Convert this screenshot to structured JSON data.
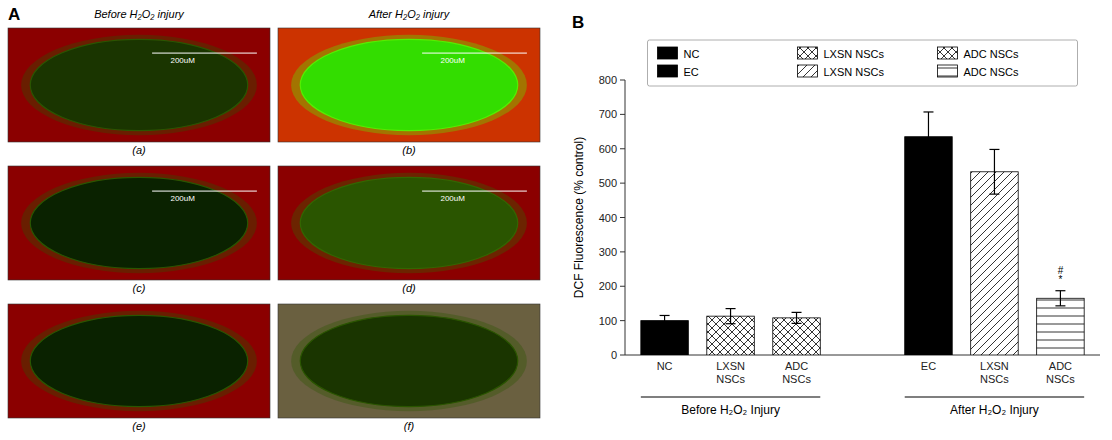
{
  "chart_data": [
    {
      "type": "image_grid",
      "title": "A",
      "columns": [
        "Before H₂O₂ injury",
        "After H₂O₂ injury"
      ],
      "categories": [
        "(a)",
        "(b)",
        "(c)",
        "(d)",
        "(e)",
        "(f)"
      ],
      "colors": [
        "#8B0000",
        "#cc3300",
        "#8B0000",
        "#8B0000",
        "#8B0000",
        "#6a6040"
      ],
      "ellipse_colors": [
        "#1a3500",
        "#33dd00",
        "#0a2200",
        "#2a5500",
        "#0a2200",
        "#1a3500"
      ],
      "ellipse_edge_colors": [
        "#2a5500",
        "#55ee00",
        "#2a5500",
        "#336600",
        "#2a5500",
        "#2a5500"
      ],
      "annotations": [
        "200uM",
        "200uM",
        "200uM",
        "200uM",
        null,
        null
      ]
    },
    {
      "type": "bar",
      "title": "B",
      "categories": [
        "NC",
        "LXSN\nNSCs",
        "ADC\nNSCs",
        "EC",
        "LXSN\nNSCs",
        "ADC\nNSCs"
      ],
      "ylabel": "DCF Fluorescence (% control)",
      "ylim": [
        0,
        800
      ],
      "yticks": [
        0,
        100,
        200,
        300,
        400,
        500,
        600,
        700,
        800
      ],
      "groups": [
        {
          "label": "Before H₂O₂ Injury",
          "count": 3
        },
        {
          "label": "After H₂O₂ Injury",
          "count": 3
        }
      ],
      "legend": "top",
      "series": [
        {
          "name": "NC",
          "color": "black",
          "edge_color": "black",
          "hatch": "....",
          "values": [
            100,
            null,
            null,
            null,
            null,
            null
          ],
          "errors": [
            15,
            null,
            null,
            null,
            null,
            null
          ]
        },
        {
          "name": "LXSN NSCs",
          "color": "white",
          "edge_color": "black",
          "hatch": "xxxx",
          "values": [
            null,
            113,
            null,
            null,
            null,
            null
          ],
          "errors": [
            null,
            22,
            null,
            null,
            null,
            null
          ]
        },
        {
          "name": "ADC NSCs",
          "color": "white",
          "edge_color": "black",
          "hatch": "xxxx",
          "values": [
            null,
            null,
            108,
            null,
            null,
            null
          ],
          "errors": [
            null,
            null,
            16,
            null,
            null,
            null
          ]
        },
        {
          "name": "EC",
          "color": "black",
          "edge_color": "black",
          "hatch": "....",
          "values": [
            null,
            null,
            null,
            635,
            null,
            null
          ],
          "errors": [
            null,
            null,
            null,
            72,
            null,
            null
          ]
        },
        {
          "name": "LXSN NSCs",
          "color": "white",
          "edge_color": "black",
          "hatch": "////",
          "values": [
            null,
            null,
            null,
            null,
            533,
            null
          ],
          "errors": [
            null,
            null,
            null,
            null,
            65,
            null
          ]
        },
        {
          "name": "ADC NSCs",
          "color": "white",
          "edge_color": "black",
          "hatch": "----",
          "values": [
            null,
            null,
            null,
            null,
            null,
            165
          ],
          "errors": [
            null,
            null,
            null,
            null,
            null,
            22
          ]
        }
      ],
      "annotations": [
        {
          "text": "#",
          "category": 5,
          "y": 235
        },
        {
          "text": "*",
          "category": 5,
          "y": 210
        }
      ]
    }
  ]
}
